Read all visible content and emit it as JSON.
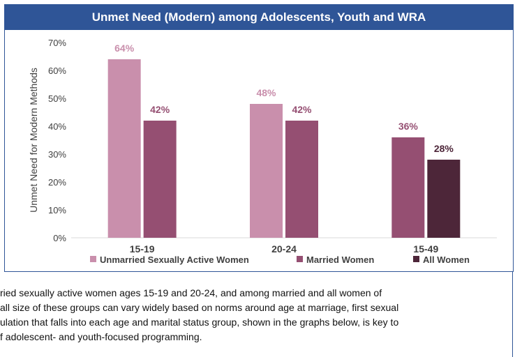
{
  "title": "Unmet Need (Modern) among Adolescents, Youth and WRA",
  "chart_data": {
    "type": "bar",
    "title": "Unmet Need (Modern) among Adolescents, Youth and WRA",
    "ylabel": "Unmet Need for Modern Methods",
    "xlabel": "",
    "ylim": [
      0,
      70
    ],
    "yticks": [
      "0%",
      "10%",
      "20%",
      "30%",
      "40%",
      "50%",
      "60%",
      "70%"
    ],
    "categories": [
      "15-19",
      "20-24",
      "15-49"
    ],
    "series": [
      {
        "name": "Unmarried Sexually Active Women",
        "color": "#c98fac",
        "values": [
          64,
          48,
          null
        ],
        "labels": [
          "64%",
          "48%",
          ""
        ]
      },
      {
        "name": "Married Women",
        "color": "#954f72",
        "values": [
          42,
          42,
          36
        ],
        "labels": [
          "42%",
          "42%",
          "36%"
        ]
      },
      {
        "name": "All Women",
        "color": "#4d2639",
        "values": [
          null,
          null,
          28
        ],
        "labels": [
          "",
          "",
          "28%"
        ]
      }
    ],
    "grid": false,
    "legend": "bottom"
  },
  "body_lines": [
    "ried sexually active women ages 15-19 and 20-24, and among married and all women of",
    "all size of these groups can vary widely based on norms around age at marriage, first sexual",
    "ulation that falls into each age and marital status group, shown in the graphs below, is key to",
    "f adolescent- and youth-focused programming."
  ]
}
